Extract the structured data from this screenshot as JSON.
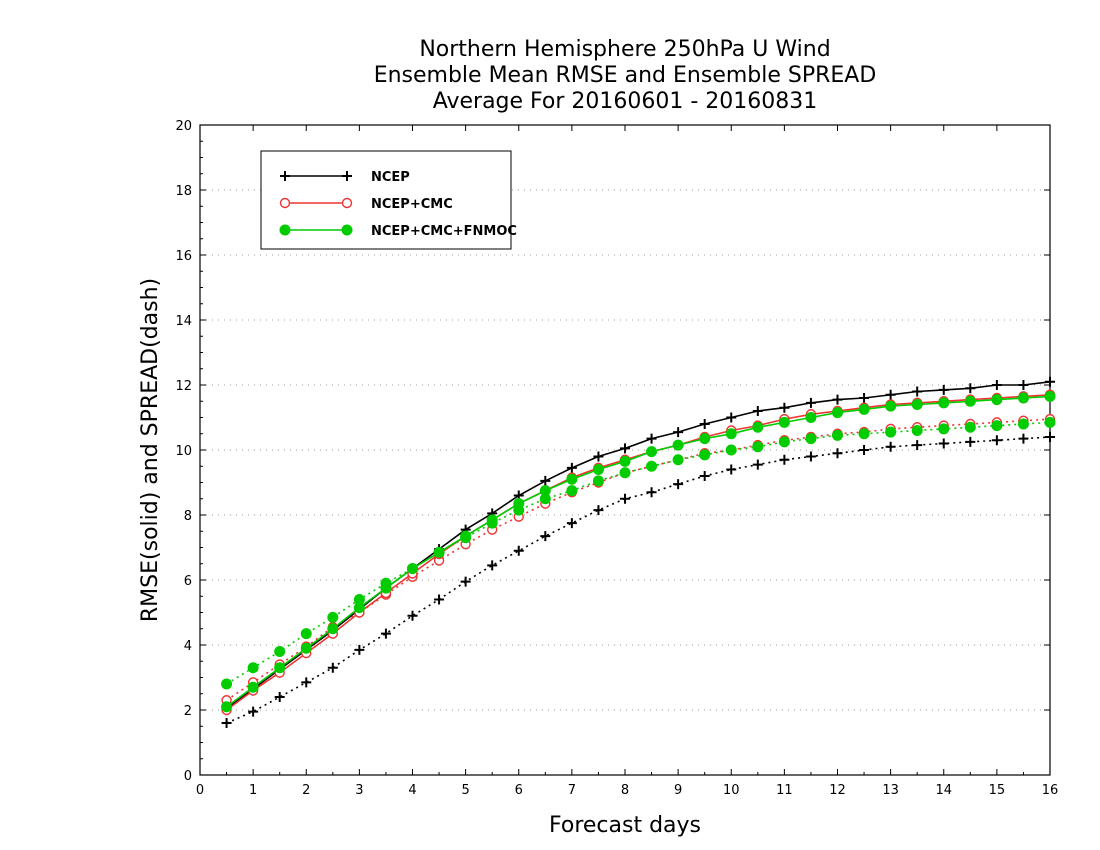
{
  "chart_data": {
    "type": "line",
    "title": [
      "Northern Hemisphere 250hPa U Wind",
      "Ensemble Mean RMSE and Ensemble SPREAD",
      "Average For 20160601 - 20160831"
    ],
    "xlabel": "Forecast days",
    "ylabel": "RMSE(solid) and SPREAD(dash)",
    "xlim": [
      0,
      16
    ],
    "ylim": [
      0,
      20
    ],
    "xticks": [
      "0",
      "1",
      "2",
      "3",
      "4",
      "5",
      "6",
      "7",
      "8",
      "9",
      "10",
      "11",
      "12",
      "13",
      "14",
      "15",
      "16"
    ],
    "yticks": [
      "0",
      "2",
      "4",
      "6",
      "8",
      "10",
      "12",
      "14",
      "16",
      "18",
      "20"
    ],
    "grid": "horizontal dotted",
    "legend_position": "top-left",
    "x": [
      0.5,
      1,
      1.5,
      2,
      2.5,
      3,
      3.5,
      4,
      4.5,
      5,
      5.5,
      6,
      6.5,
      7,
      7.5,
      8,
      8.5,
      9,
      9.5,
      10,
      10.5,
      11,
      11.5,
      12,
      12.5,
      13,
      13.5,
      14,
      14.5,
      15,
      15.5,
      16
    ],
    "series": [
      {
        "name": "NCEP",
        "kind": "RMSE",
        "color": "#000000",
        "marker": "plus",
        "line": "solid",
        "values": [
          2.05,
          2.65,
          3.25,
          3.85,
          4.45,
          5.1,
          5.75,
          6.35,
          6.95,
          7.55,
          8.05,
          8.6,
          9.05,
          9.45,
          9.8,
          10.05,
          10.35,
          10.55,
          10.8,
          11.0,
          11.2,
          11.3,
          11.45,
          11.55,
          11.6,
          11.7,
          11.8,
          11.85,
          11.9,
          12.0,
          12.0,
          12.1
        ]
      },
      {
        "name": "NCEP+CMC",
        "kind": "RMSE",
        "color": "#ee3333",
        "marker": "open-circle",
        "line": "solid",
        "values": [
          2.0,
          2.6,
          3.15,
          3.75,
          4.35,
          5.0,
          5.6,
          6.2,
          6.8,
          7.35,
          7.85,
          8.35,
          8.75,
          9.15,
          9.45,
          9.7,
          9.95,
          10.15,
          10.4,
          10.6,
          10.75,
          10.95,
          11.1,
          11.2,
          11.3,
          11.4,
          11.45,
          11.5,
          11.55,
          11.6,
          11.65,
          11.7
        ]
      },
      {
        "name": "NCEP+CMC+FNMOC",
        "kind": "RMSE",
        "color": "#00cc00",
        "marker": "filled-circle",
        "line": "solid",
        "values": [
          2.1,
          2.7,
          3.3,
          3.9,
          4.5,
          5.15,
          5.75,
          6.35,
          6.85,
          7.35,
          7.85,
          8.35,
          8.75,
          9.1,
          9.4,
          9.65,
          9.95,
          10.15,
          10.35,
          10.5,
          10.7,
          10.85,
          11.0,
          11.15,
          11.25,
          11.35,
          11.4,
          11.45,
          11.5,
          11.55,
          11.6,
          11.65
        ]
      },
      {
        "name": "NCEP",
        "kind": "SPREAD",
        "color": "#000000",
        "marker": "plus",
        "line": "dotted",
        "values": [
          1.6,
          1.95,
          2.4,
          2.85,
          3.3,
          3.85,
          4.35,
          4.9,
          5.4,
          5.95,
          6.45,
          6.9,
          7.35,
          7.75,
          8.15,
          8.5,
          8.7,
          8.95,
          9.2,
          9.4,
          9.55,
          9.7,
          9.8,
          9.9,
          10.0,
          10.1,
          10.15,
          10.2,
          10.25,
          10.3,
          10.35,
          10.4
        ]
      },
      {
        "name": "NCEP+CMC",
        "kind": "SPREAD",
        "color": "#ee3333",
        "marker": "open-circle",
        "line": "dotted",
        "values": [
          2.3,
          2.85,
          3.4,
          3.95,
          4.55,
          5.0,
          5.55,
          6.1,
          6.6,
          7.1,
          7.55,
          7.95,
          8.35,
          8.7,
          9.0,
          9.3,
          9.5,
          9.7,
          9.9,
          10.0,
          10.15,
          10.3,
          10.4,
          10.5,
          10.55,
          10.65,
          10.7,
          10.75,
          10.8,
          10.85,
          10.9,
          10.95
        ]
      },
      {
        "name": "NCEP+CMC+FNMOC",
        "kind": "SPREAD",
        "color": "#00cc00",
        "marker": "filled-circle",
        "line": "dotted",
        "values": [
          2.8,
          3.3,
          3.8,
          4.35,
          4.85,
          5.4,
          5.9,
          6.35,
          6.85,
          7.3,
          7.75,
          8.15,
          8.5,
          8.75,
          9.05,
          9.3,
          9.5,
          9.7,
          9.85,
          10.0,
          10.1,
          10.25,
          10.35,
          10.45,
          10.5,
          10.55,
          10.6,
          10.65,
          10.7,
          10.75,
          10.8,
          10.85
        ]
      }
    ],
    "legend": [
      {
        "label": "NCEP",
        "color": "#000000",
        "marker": "plus"
      },
      {
        "label": "NCEP+CMC",
        "color": "#ee3333",
        "marker": "open-circle"
      },
      {
        "label": "NCEP+CMC+FNMOC",
        "color": "#00cc00",
        "marker": "filled-circle"
      }
    ]
  }
}
